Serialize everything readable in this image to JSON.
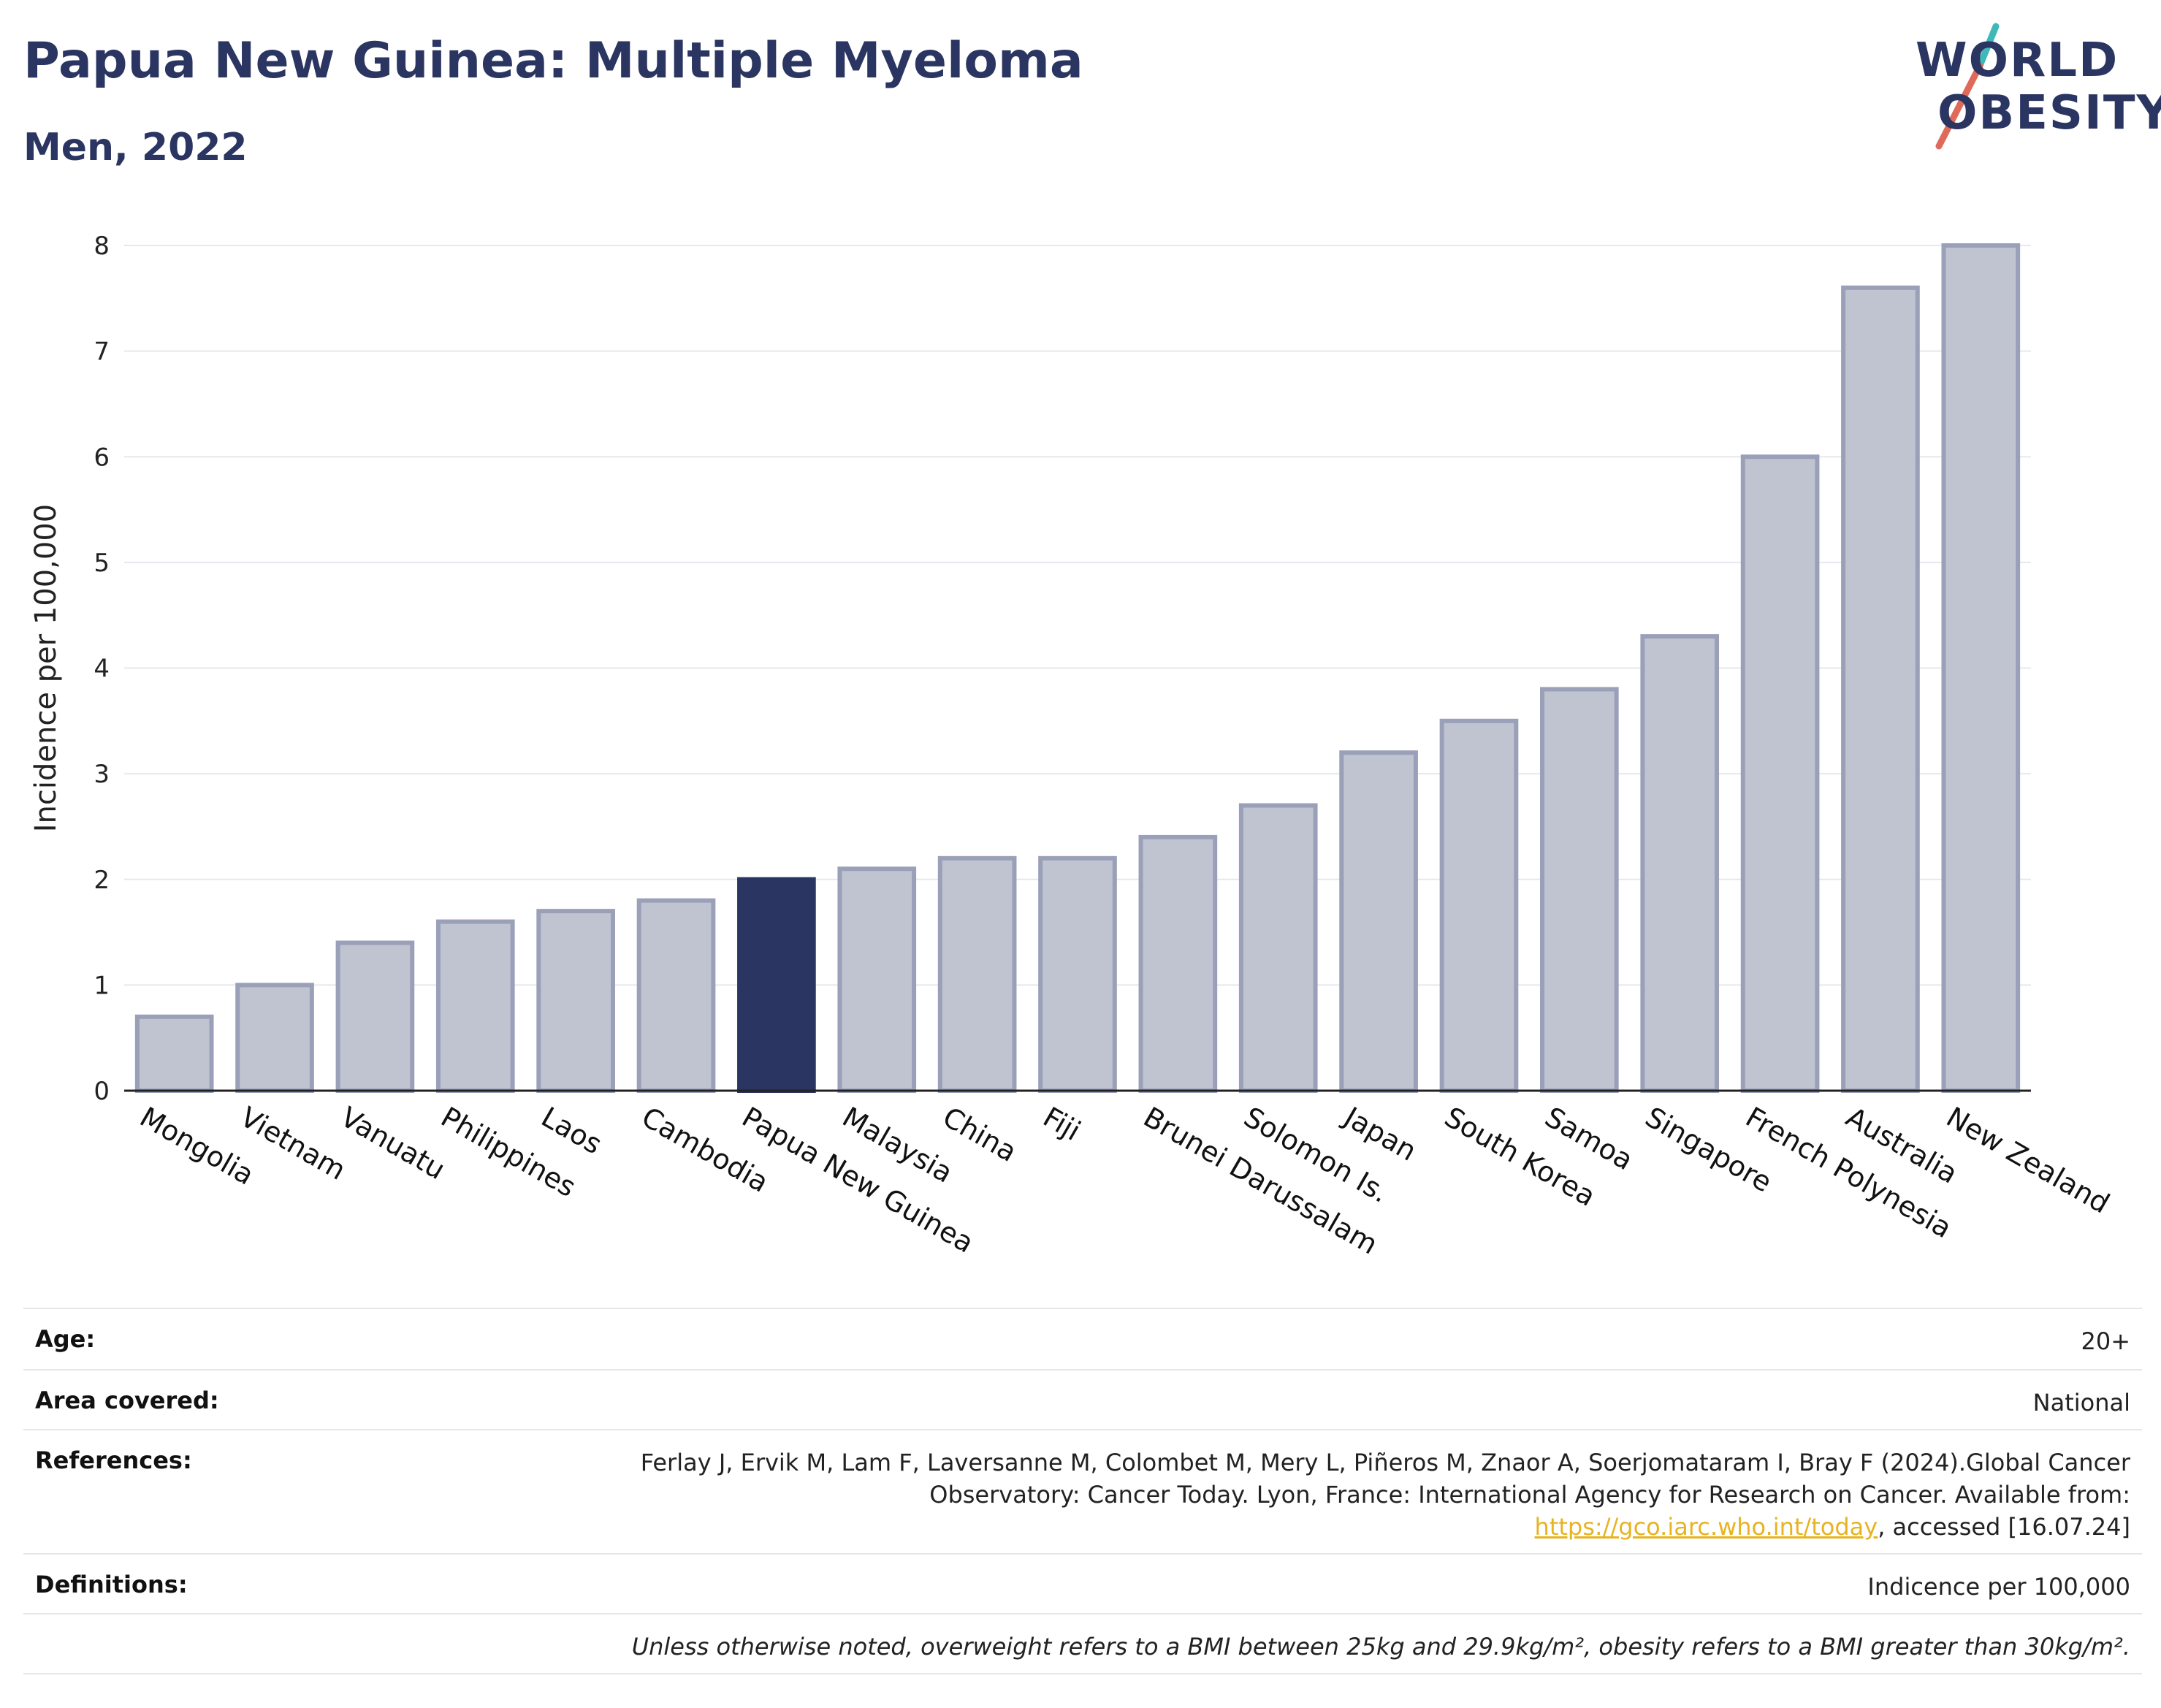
{
  "header": {
    "title": "Papua New Guinea: Multiple Myeloma",
    "subtitle": "Men, 2022"
  },
  "logo": {
    "line1": "WORLD",
    "line2": "OBESITY",
    "slash_color_top": "#3fb8b8",
    "slash_color_bottom": "#e06a5a"
  },
  "chart_data": {
    "type": "bar",
    "title": "Papua New Guinea: Multiple Myeloma",
    "subtitle": "Men, 2022",
    "xlabel": "",
    "ylabel": "Incidence per 100,000",
    "categories": [
      "Mongolia",
      "Vietnam",
      "Vanuatu",
      "Philippines",
      "Laos",
      "Cambodia",
      "Papua New Guinea",
      "Malaysia",
      "China",
      "Fiji",
      "Brunei Darussalam",
      "Solomon Is.",
      "Japan",
      "South Korea",
      "Samoa",
      "Singapore",
      "French Polynesia",
      "Australia",
      "New Zealand"
    ],
    "values": [
      0.7,
      1.0,
      1.4,
      1.6,
      1.7,
      1.8,
      2.0,
      2.1,
      2.2,
      2.2,
      2.4,
      2.7,
      3.2,
      3.5,
      3.8,
      4.3,
      6.0,
      7.6,
      8.0
    ],
    "highlight": "Papua New Guinea",
    "ylim": [
      0,
      8
    ],
    "yticks": [
      0,
      1,
      2,
      3,
      4,
      5,
      6,
      7,
      8
    ],
    "grid": true,
    "colors": {
      "bar": "#c0c3d0",
      "bar_border": "#9aa0b8",
      "highlight": "#2a3561",
      "grid": "#e6e8ee"
    }
  },
  "info": {
    "age_label": "Age:",
    "age_value": "20+",
    "area_label": "Area covered:",
    "area_value": "National",
    "refs_label": "References:",
    "refs_text_1": "Ferlay J, Ervik M, Lam F, Laversanne M, Colombet M, Mery L, Piñeros M, Znaor A, Soerjomataram I, Bray F (2024).Global Cancer Observatory: Cancer Today. Lyon, France: International Agency for Research on Cancer. Available from: ",
    "refs_link": "https://gco.iarc.who.int/today",
    "refs_text_2": ", accessed [16.07.24]",
    "defs_label": "Definitions:",
    "defs_value": "Indicence per 100,000",
    "note": "Unless otherwise noted, overweight refers to a BMI between 25kg and 29.9kg/m², obesity refers to a BMI greater than 30kg/m²."
  }
}
